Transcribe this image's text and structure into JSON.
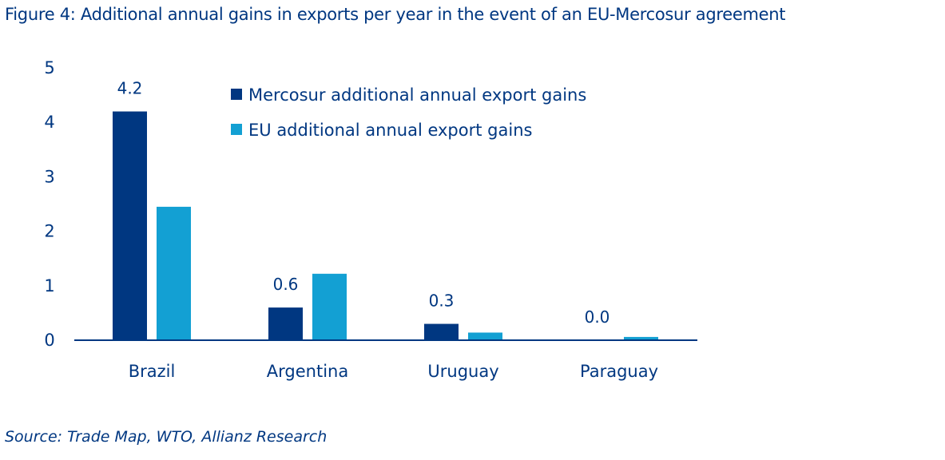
{
  "title": "Figure 4: Additional annual gains in exports per year in the event of an EU-Mercosur agreement",
  "source": "Source: Trade Map, WTO, Allianz Research",
  "colors": {
    "text": "#003781",
    "mercosur": "#003781",
    "eu": "#13a0d3",
    "axis": "#003781"
  },
  "chart_data": {
    "type": "bar",
    "categories": [
      "Brazil",
      "Argentina",
      "Uruguay",
      "Paraguay"
    ],
    "series": [
      {
        "name": "Mercosur additional annual export gains",
        "values": [
          4.2,
          0.6,
          0.3,
          0.0
        ],
        "color": "#003781",
        "labels": [
          "4.2",
          "0.6",
          "0.3",
          "0.0"
        ]
      },
      {
        "name": "EU additional annual export gains",
        "values": [
          2.45,
          1.22,
          0.14,
          0.06
        ],
        "color": "#13a0d3"
      }
    ],
    "ylim": [
      0,
      5
    ],
    "yticks": [
      "0",
      "1",
      "2",
      "3",
      "4",
      "5"
    ],
    "grid": false,
    "legend_position": "top-center"
  }
}
